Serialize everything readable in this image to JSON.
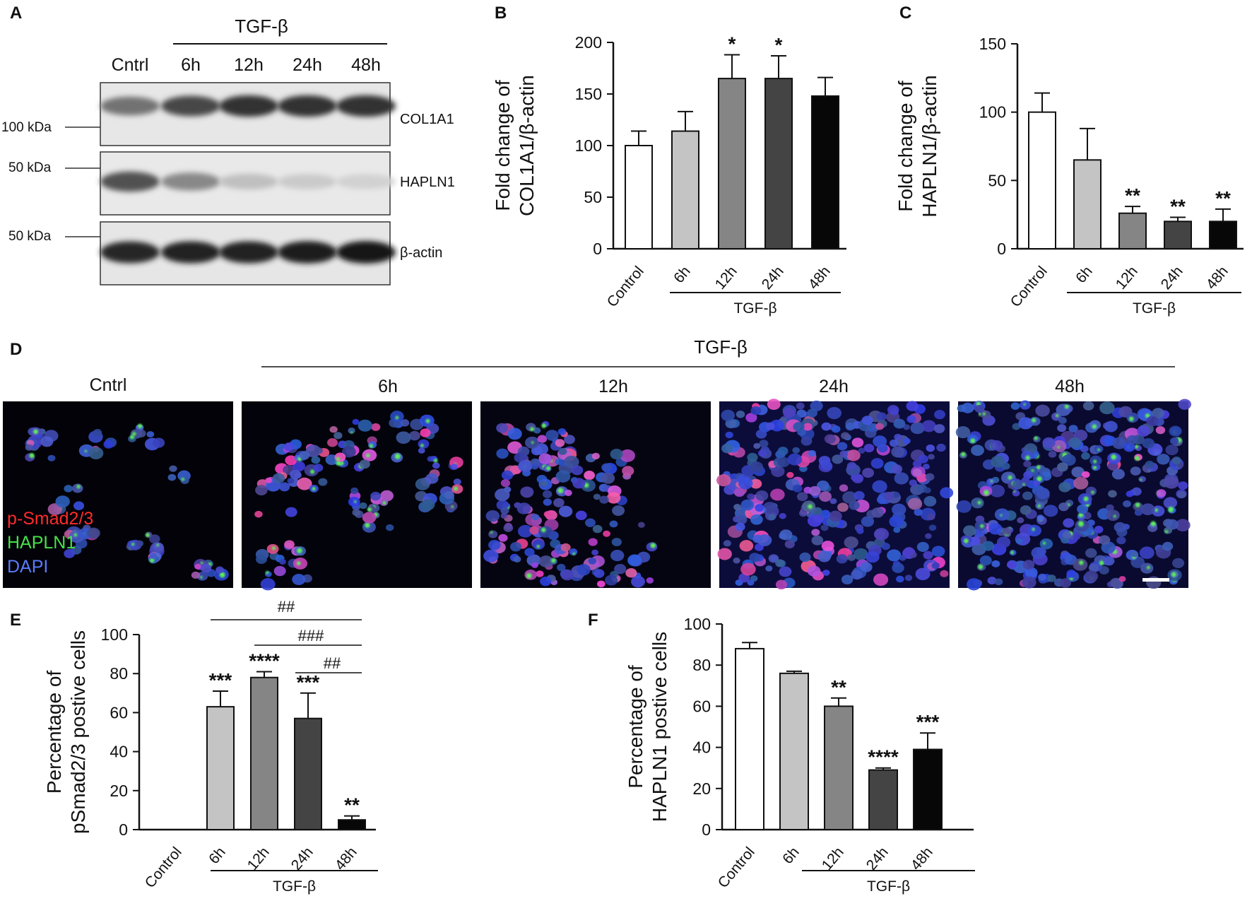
{
  "panels": {
    "A": {
      "label": "A",
      "treatment": "TGF-β",
      "lanes": [
        "Cntrl",
        "6h",
        "12h",
        "24h",
        "48h"
      ],
      "blots": [
        {
          "marker": "100 kDa",
          "protein": "COL1A1",
          "intensities": [
            0.55,
            0.75,
            0.85,
            0.85,
            0.85
          ]
        },
        {
          "marker": "50 kDa",
          "protein": "HAPLN1",
          "intensities": [
            0.7,
            0.45,
            0.2,
            0.15,
            0.12
          ]
        },
        {
          "marker": "50 kDa",
          "protein": "β-actin",
          "intensities": [
            0.9,
            0.92,
            0.92,
            0.95,
            0.97
          ]
        }
      ]
    },
    "B": {
      "label": "B",
      "treatment": "TGF-β"
    },
    "C": {
      "label": "C",
      "treatment": "TGF-β"
    },
    "D": {
      "label": "D",
      "treatment": "TGF-β",
      "images": [
        "Cntrl",
        "6h",
        "12h",
        "24h",
        "48h"
      ],
      "channels": {
        "red": "p-Smad2/3",
        "green": "HAPLN1",
        "blue": "DAPI"
      }
    },
    "E": {
      "label": "E",
      "treatment": "TGF-β",
      "comparisons": [
        "##",
        "###",
        "##"
      ]
    },
    "F": {
      "label": "F",
      "treatment": "TGF-β"
    }
  },
  "colors": {
    "Control": "#ffffff",
    "6h": "#c4c4c4",
    "12h": "#858585",
    "24h": "#444444",
    "48h": "#070707"
  },
  "chart_data": [
    {
      "panel": "B",
      "type": "bar",
      "categories": [
        "Control",
        "6h",
        "12h",
        "24h",
        "48h"
      ],
      "values": [
        100,
        114,
        165,
        165,
        148
      ],
      "errors": [
        14,
        19,
        23,
        22,
        18
      ],
      "significance": [
        "",
        "",
        "*",
        "*",
        ""
      ],
      "ylabel": [
        "Fold change of",
        "COL1A1/β-actin"
      ],
      "ylim": [
        0,
        200
      ],
      "yticks": [
        0,
        50,
        100,
        150,
        200
      ],
      "group_label": "TGF-β"
    },
    {
      "panel": "C",
      "type": "bar",
      "categories": [
        "Control",
        "6h",
        "12h",
        "24h",
        "48h"
      ],
      "values": [
        100,
        65,
        26,
        20,
        20
      ],
      "errors": [
        14,
        23,
        5,
        3,
        9
      ],
      "significance": [
        "",
        "",
        "**",
        "**",
        "**"
      ],
      "ylabel": [
        "Fold change of",
        "HAPLN1/β-actin"
      ],
      "ylim": [
        0,
        150
      ],
      "yticks": [
        0,
        50,
        100,
        150
      ],
      "group_label": "TGF-β"
    },
    {
      "panel": "E",
      "type": "bar",
      "categories": [
        "Control",
        "6h",
        "12h",
        "24h",
        "48h"
      ],
      "values": [
        0,
        63,
        78,
        57,
        5
      ],
      "errors": [
        0,
        8,
        3,
        13,
        2
      ],
      "significance": [
        "",
        "***",
        "****",
        "***",
        "**"
      ],
      "ylabel": [
        "Percentage of",
        "pSmad2/3 postive cells"
      ],
      "ylim": [
        0,
        100
      ],
      "yticks": [
        0,
        20,
        40,
        60,
        80,
        100
      ],
      "group_label": "TGF-β"
    },
    {
      "panel": "F",
      "type": "bar",
      "categories": [
        "Control",
        "6h",
        "12h",
        "24h",
        "48h"
      ],
      "values": [
        88,
        76,
        60,
        29,
        39
      ],
      "errors": [
        3,
        1,
        4,
        1,
        8
      ],
      "significance": [
        "",
        "",
        "**",
        "****",
        "***"
      ],
      "ylabel": [
        "Percentage of",
        "HAPLN1 postive cells"
      ],
      "ylim": [
        0,
        100
      ],
      "yticks": [
        0,
        20,
        40,
        60,
        80,
        100
      ],
      "group_label": "TGF-β"
    }
  ]
}
